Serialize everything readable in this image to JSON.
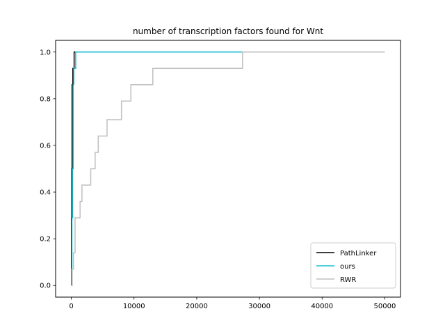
{
  "chart_data": {
    "type": "line",
    "title": "number of transcription factors found for Wnt",
    "xlabel": "",
    "ylabel": "",
    "xlim": [
      -2500,
      52500
    ],
    "ylim": [
      -0.05,
      1.05
    ],
    "xticks": [
      0,
      10000,
      20000,
      30000,
      40000,
      50000
    ],
    "yticks": [
      0.0,
      0.2,
      0.4,
      0.6,
      0.8,
      1.0
    ],
    "xtick_labels": [
      "0",
      "10000",
      "20000",
      "30000",
      "40000",
      "50000"
    ],
    "ytick_labels": [
      "0.0",
      "0.2",
      "0.4",
      "0.6",
      "0.8",
      "1.0"
    ],
    "grid": false,
    "legend_position": "lower-right",
    "series": [
      {
        "name": "PathLinker",
        "color": "#000000",
        "step": true,
        "points": [
          [
            0,
            0.0
          ],
          [
            30,
            0.29
          ],
          [
            80,
            0.5
          ],
          [
            120,
            0.86
          ],
          [
            200,
            0.86
          ],
          [
            250,
            0.93
          ],
          [
            400,
            0.93
          ],
          [
            450,
            1.0
          ],
          [
            50000,
            1.0
          ]
        ]
      },
      {
        "name": "ours",
        "color": "#17becf",
        "step": true,
        "points": [
          [
            0,
            0.0
          ],
          [
            50,
            0.07
          ],
          [
            100,
            0.29
          ],
          [
            200,
            0.5
          ],
          [
            300,
            0.86
          ],
          [
            400,
            0.93
          ],
          [
            600,
            0.93
          ],
          [
            700,
            1.0
          ],
          [
            50000,
            1.0
          ]
        ]
      },
      {
        "name": "RWR",
        "color": "#bfbfbf",
        "step": true,
        "points": [
          [
            0,
            0.0
          ],
          [
            150,
            0.07
          ],
          [
            350,
            0.14
          ],
          [
            600,
            0.29
          ],
          [
            1400,
            0.36
          ],
          [
            1700,
            0.43
          ],
          [
            3100,
            0.5
          ],
          [
            3800,
            0.57
          ],
          [
            4300,
            0.64
          ],
          [
            5700,
            0.71
          ],
          [
            8000,
            0.79
          ],
          [
            9500,
            0.86
          ],
          [
            13000,
            0.93
          ],
          [
            27300,
            1.0
          ],
          [
            50000,
            1.0
          ]
        ]
      }
    ]
  }
}
